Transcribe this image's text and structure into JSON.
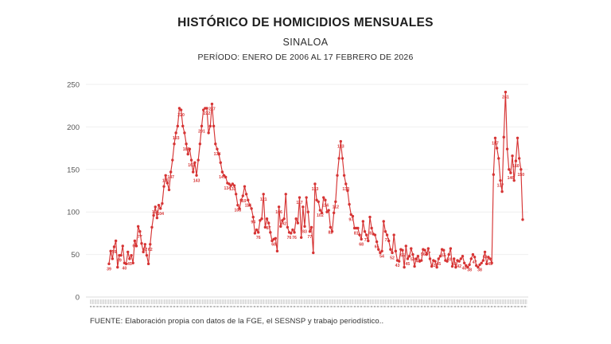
{
  "header": {
    "title": "HISTÓRICO DE HOMICIDIOS MENSUALES",
    "subtitle": "SINALOA",
    "period": "PERÍODO: ENERO DE 2006 AL 17 FEBRERO DE 2026"
  },
  "footer": {
    "source": "FUENTE: Elaboración propia con datos de la FGE, el SESNSP y trabajo periodístico.."
  },
  "chart_data": {
    "type": "line",
    "title": "HISTÓRICO DE HOMICIDIOS MENSUALES",
    "subtitle": "SINALOA",
    "period": "PERÍODO: ENERO DE 2006 AL 17 FEBRERO DE 2026",
    "x_unit": "month",
    "x_start": "Enero 2006",
    "x_end": "17 Febrero 2026",
    "ylim": [
      0,
      250
    ],
    "yticks": [
      0,
      50,
      100,
      150,
      200,
      250
    ],
    "grid": "horizontal-faint",
    "legend": "none",
    "line_color": "#d63434",
    "label_color": "#d63434",
    "axis_text_color": "#555555",
    "series": [
      {
        "name": "Homicidios mensuales",
        "values": [
          39,
          54,
          45,
          59,
          66,
          35,
          49,
          49,
          60,
          40,
          39,
          53,
          45,
          49,
          40,
          66,
          60,
          83,
          77,
          63,
          53,
          62,
          49,
          39,
          62,
          82,
          96,
          106,
          93,
          108,
          104,
          110,
          130,
          143,
          134,
          126,
          147,
          161,
          180,
          193,
          201,
          222,
          220,
          201,
          193,
          180,
          168,
          174,
          161,
          147,
          158,
          143,
          161,
          180,
          201,
          220,
          222,
          222,
          193,
          201,
          227,
          201,
          180,
          174,
          168,
          158,
          147,
          143,
          141,
          134,
          133,
          131,
          133,
          131,
          121,
          108,
          104,
          114,
          119,
          130,
          121,
          114,
          108,
          104,
          94,
          75,
          79,
          76,
          90,
          92,
          121,
          82,
          92,
          87,
          76,
          66,
          68,
          69,
          54,
          106,
          83,
          90,
          92,
          121,
          82,
          76,
          75,
          79,
          76,
          92,
          87,
          117,
          70,
          106,
          83,
          117,
          100,
          77,
          82,
          52,
          133,
          114,
          112,
          102,
          99,
          117,
          114,
          100,
          102,
          82,
          77,
          99,
          112,
          143,
          163,
          183,
          163,
          143,
          133,
          125,
          109,
          97,
          95,
          81,
          81,
          81,
          73,
          68,
          89,
          77,
          73,
          66,
          94,
          81,
          74,
          73,
          65,
          56,
          52,
          54,
          89,
          77,
          73,
          66,
          56,
          52,
          73,
          54,
          43,
          42,
          56,
          55,
          35,
          60,
          45,
          48,
          57,
          50,
          36,
          45,
          48,
          42,
          43,
          56,
          55,
          50,
          57,
          45,
          36,
          43,
          42,
          35,
          45,
          48,
          56,
          55,
          43,
          42,
          50,
          57,
          36,
          45,
          35,
          43,
          42,
          45,
          48,
          40,
          37,
          35,
          38,
          45,
          50,
          47,
          37,
          35,
          38,
          40,
          43,
          53,
          39,
          47,
          45,
          40,
          144,
          187,
          175,
          163,
          137,
          124,
          188,
          241,
          174,
          150,
          146,
          166,
          137,
          160,
          187,
          163,
          150,
          91
        ]
      }
    ]
  }
}
